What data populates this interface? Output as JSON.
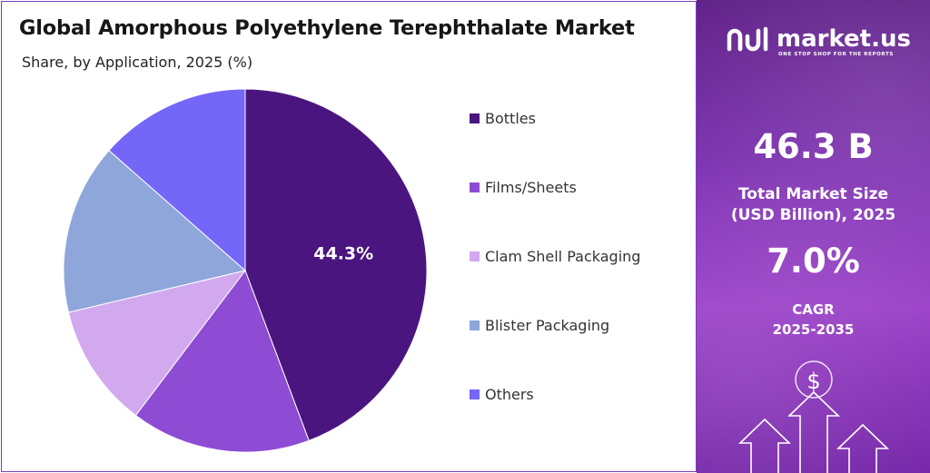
{
  "chart_data": {
    "type": "pie",
    "title": "Global Amorphous Polyethylene Terephthalate Market",
    "subtitle": "Share, by Application, 2025 (%)",
    "categories": [
      "Bottles",
      "Films/Sheets",
      "Clam Shell Packaging",
      "Blister Packaging",
      "Others"
    ],
    "values": [
      44.3,
      16.0,
      11.0,
      15.2,
      13.5
    ],
    "colors": [
      "#4b1580",
      "#8d4cd3",
      "#d2a9ee",
      "#8ea6da",
      "#7466f7"
    ],
    "data_labels": [
      "44.3%",
      "",
      "",
      "",
      ""
    ],
    "start_angle_deg": 0,
    "direction": "clockwise",
    "legend_position": "right"
  },
  "brand": {
    "name": "market.us",
    "tagline": "ONE STOP SHOP FOR THE REPORTS",
    "logo_icon": "market-us-logo-icon"
  },
  "stats": {
    "market_size_value": "46.3 B",
    "market_size_label_line1": "Total Market Size",
    "market_size_label_line2": "(USD Billion), 2025",
    "cagr_value": "7.0%",
    "cagr_label_line1": "CAGR",
    "cagr_label_line2": "2025-2035"
  },
  "decoration": {
    "dollar_symbol": "$",
    "arrow_icons": [
      "up-arrow-icon",
      "up-arrow-icon",
      "up-arrow-icon"
    ]
  }
}
